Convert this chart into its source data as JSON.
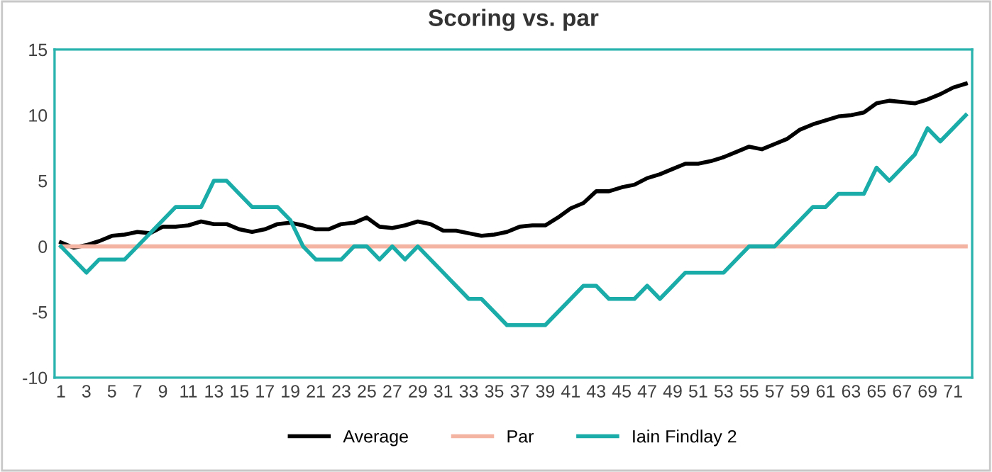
{
  "chart_data": {
    "type": "line",
    "title": "Scoring vs. par",
    "categories": [
      "1",
      null,
      "3",
      null,
      "5",
      null,
      "7",
      null,
      "9",
      null,
      "11",
      null,
      "13",
      null,
      "15",
      null,
      "17",
      null,
      "19",
      null,
      "21",
      null,
      "23",
      null,
      "25",
      null,
      "27",
      null,
      "29",
      null,
      "31",
      null,
      "33",
      null,
      "35",
      null,
      "37",
      null,
      "39",
      null,
      "41",
      null,
      "43",
      null,
      "45",
      null,
      "47",
      null,
      "49",
      null,
      "51",
      null,
      "53",
      null,
      "55",
      null,
      "57",
      null,
      "59",
      null,
      "61",
      null,
      "63",
      null,
      "65",
      null,
      "67",
      null,
      "69",
      null,
      "71",
      null
    ],
    "ylim": [
      -10,
      15
    ],
    "yticks": [
      -10,
      -5,
      0,
      5,
      10,
      15
    ],
    "grid": false,
    "legend": "bottom",
    "marker": "none",
    "line_style": "solid",
    "series": [
      {
        "name": "Average",
        "color": "#000000",
        "values": [
          0.3,
          -0.1,
          0.1,
          0.4,
          0.8,
          0.9,
          1.1,
          1.0,
          1.5,
          1.5,
          1.6,
          1.9,
          1.7,
          1.7,
          1.3,
          1.1,
          1.3,
          1.7,
          1.8,
          1.6,
          1.3,
          1.3,
          1.7,
          1.8,
          2.2,
          1.5,
          1.4,
          1.6,
          1.9,
          1.7,
          1.2,
          1.2,
          1.0,
          0.8,
          0.9,
          1.1,
          1.5,
          1.6,
          1.6,
          2.2,
          2.9,
          3.3,
          4.2,
          4.2,
          4.5,
          4.7,
          5.2,
          5.5,
          5.9,
          6.3,
          6.3,
          6.5,
          6.8,
          7.2,
          7.6,
          7.4,
          7.8,
          8.2,
          8.9,
          9.3,
          9.6,
          9.9,
          10.0,
          10.2,
          10.9,
          11.1,
          11.0,
          10.9,
          11.2,
          11.6,
          12.1,
          12.4
        ]
      },
      {
        "name": "Par",
        "color": "#f4b4a2",
        "values": [
          0,
          0,
          0,
          0,
          0,
          0,
          0,
          0,
          0,
          0,
          0,
          0,
          0,
          0,
          0,
          0,
          0,
          0,
          0,
          0,
          0,
          0,
          0,
          0,
          0,
          0,
          0,
          0,
          0,
          0,
          0,
          0,
          0,
          0,
          0,
          0,
          0,
          0,
          0,
          0,
          0,
          0,
          0,
          0,
          0,
          0,
          0,
          0,
          0,
          0,
          0,
          0,
          0,
          0,
          0,
          0,
          0,
          0,
          0,
          0,
          0,
          0,
          0,
          0,
          0,
          0,
          0,
          0,
          0,
          0,
          0,
          0
        ]
      },
      {
        "name": "Iain Findlay 2",
        "color": "#1aaca8",
        "values": [
          0,
          -1,
          -2,
          -1,
          -1,
          -1,
          0,
          1,
          2,
          3,
          3,
          3,
          5,
          5,
          4,
          3,
          3,
          3,
          2,
          0,
          -1,
          -1,
          -1,
          0,
          0,
          -1,
          0,
          -1,
          0,
          -1,
          -2,
          -3,
          -4,
          -4,
          -5,
          -6,
          -6,
          -6,
          -6,
          -5,
          -4,
          -3,
          -3,
          -4,
          -4,
          -4,
          -3,
          -4,
          -3,
          -2,
          -2,
          -2,
          -2,
          -1,
          0,
          0,
          0,
          1,
          2,
          3,
          3,
          4,
          4,
          4,
          6,
          5,
          6,
          7,
          9,
          8,
          9,
          10
        ]
      }
    ]
  }
}
